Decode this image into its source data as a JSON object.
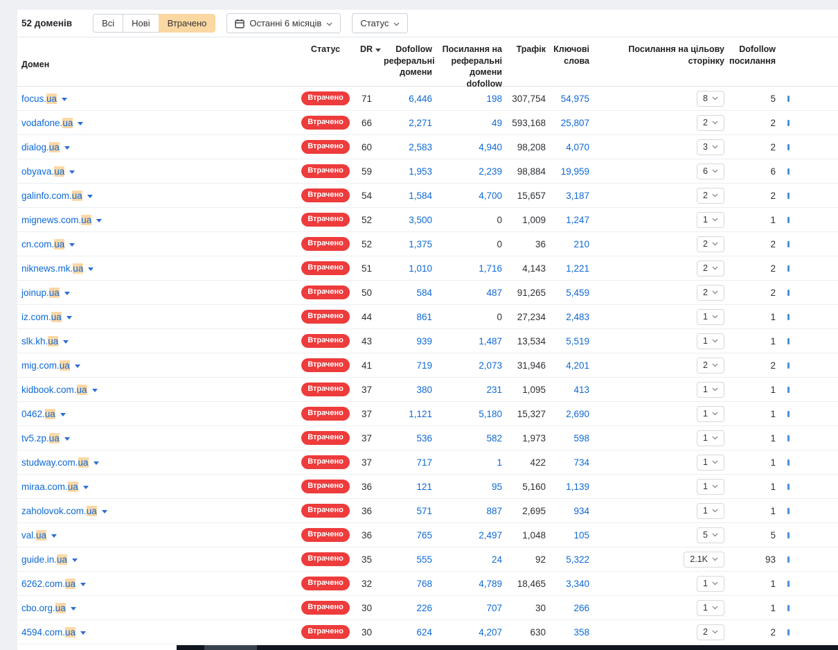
{
  "toolbar": {
    "count_label": "52 доменів",
    "filters": [
      "Всі",
      "Нові",
      "Втрачено"
    ],
    "active_filter": "Втрачено",
    "date_button": "Останні 6 місяців",
    "status_button": "Статус"
  },
  "table": {
    "columns": [
      "Домен",
      "Статус",
      "DR",
      "Dofollow реферальні домени",
      "Посилання на реферальні домени dofollow",
      "Трафік",
      "Ключові слова",
      "Посилання на цільову сторінку",
      "Dofollow посилання"
    ],
    "status_badge": "Втрачено",
    "rows": [
      {
        "domain_prefix": "focus.",
        "domain_highlight": "ua",
        "dr": "71",
        "dofollow_ref_domains": "6,446",
        "links_ref_domains": "198",
        "traffic": "307,754",
        "keywords": "54,975",
        "target_links": "8",
        "dofollow_links": "5"
      },
      {
        "domain_prefix": "vodafone.",
        "domain_highlight": "ua",
        "dr": "66",
        "dofollow_ref_domains": "2,271",
        "links_ref_domains": "49",
        "traffic": "593,168",
        "keywords": "25,807",
        "target_links": "2",
        "dofollow_links": "2"
      },
      {
        "domain_prefix": "dialog.",
        "domain_highlight": "ua",
        "dr": "60",
        "dofollow_ref_domains": "2,583",
        "links_ref_domains": "4,940",
        "traffic": "98,208",
        "keywords": "4,070",
        "target_links": "3",
        "dofollow_links": "2"
      },
      {
        "domain_prefix": "obyava.",
        "domain_highlight": "ua",
        "dr": "59",
        "dofollow_ref_domains": "1,953",
        "links_ref_domains": "2,239",
        "traffic": "98,884",
        "keywords": "19,959",
        "target_links": "6",
        "dofollow_links": "6"
      },
      {
        "domain_prefix": "galinfo.com.",
        "domain_highlight": "ua",
        "dr": "54",
        "dofollow_ref_domains": "1,584",
        "links_ref_domains": "4,700",
        "traffic": "15,657",
        "keywords": "3,187",
        "target_links": "2",
        "dofollow_links": "2"
      },
      {
        "domain_prefix": "mignews.com.",
        "domain_highlight": "ua",
        "dr": "52",
        "dofollow_ref_domains": "3,500",
        "links_ref_domains": "0",
        "traffic": "1,009",
        "keywords": "1,247",
        "target_links": "1",
        "dofollow_links": "1"
      },
      {
        "domain_prefix": "cn.com.",
        "domain_highlight": "ua",
        "dr": "52",
        "dofollow_ref_domains": "1,375",
        "links_ref_domains": "0",
        "traffic": "36",
        "keywords": "210",
        "target_links": "2",
        "dofollow_links": "2"
      },
      {
        "domain_prefix": "niknews.mk.",
        "domain_highlight": "ua",
        "dr": "51",
        "dofollow_ref_domains": "1,010",
        "links_ref_domains": "1,716",
        "traffic": "4,143",
        "keywords": "1,221",
        "target_links": "2",
        "dofollow_links": "2"
      },
      {
        "domain_prefix": "joinup.",
        "domain_highlight": "ua",
        "dr": "50",
        "dofollow_ref_domains": "584",
        "links_ref_domains": "487",
        "traffic": "91,265",
        "keywords": "5,459",
        "target_links": "2",
        "dofollow_links": "2"
      },
      {
        "domain_prefix": "iz.com.",
        "domain_highlight": "ua",
        "dr": "44",
        "dofollow_ref_domains": "861",
        "links_ref_domains": "0",
        "traffic": "27,234",
        "keywords": "2,483",
        "target_links": "1",
        "dofollow_links": "1"
      },
      {
        "domain_prefix": "slk.kh.",
        "domain_highlight": "ua",
        "dr": "43",
        "dofollow_ref_domains": "939",
        "links_ref_domains": "1,487",
        "traffic": "13,534",
        "keywords": "5,519",
        "target_links": "1",
        "dofollow_links": "1"
      },
      {
        "domain_prefix": "mig.com.",
        "domain_highlight": "ua",
        "dr": "41",
        "dofollow_ref_domains": "719",
        "links_ref_domains": "2,073",
        "traffic": "31,946",
        "keywords": "4,201",
        "target_links": "2",
        "dofollow_links": "2"
      },
      {
        "domain_prefix": "kidbook.com.",
        "domain_highlight": "ua",
        "dr": "37",
        "dofollow_ref_domains": "380",
        "links_ref_domains": "231",
        "traffic": "1,095",
        "keywords": "413",
        "target_links": "1",
        "dofollow_links": "1"
      },
      {
        "domain_prefix": "0462.",
        "domain_highlight": "ua",
        "dr": "37",
        "dofollow_ref_domains": "1,121",
        "links_ref_domains": "5,180",
        "traffic": "15,327",
        "keywords": "2,690",
        "target_links": "1",
        "dofollow_links": "1"
      },
      {
        "domain_prefix": "tv5.zp.",
        "domain_highlight": "ua",
        "dr": "37",
        "dofollow_ref_domains": "536",
        "links_ref_domains": "582",
        "traffic": "1,973",
        "keywords": "598",
        "target_links": "1",
        "dofollow_links": "1"
      },
      {
        "domain_prefix": "studway.com.",
        "domain_highlight": "ua",
        "dr": "37",
        "dofollow_ref_domains": "717",
        "links_ref_domains": "1",
        "traffic": "422",
        "keywords": "734",
        "target_links": "1",
        "dofollow_links": "1"
      },
      {
        "domain_prefix": "miraa.com.",
        "domain_highlight": "ua",
        "dr": "36",
        "dofollow_ref_domains": "121",
        "links_ref_domains": "95",
        "traffic": "5,160",
        "keywords": "1,139",
        "target_links": "1",
        "dofollow_links": "1"
      },
      {
        "domain_prefix": "zaholovok.com.",
        "domain_highlight": "ua",
        "dr": "36",
        "dofollow_ref_domains": "571",
        "links_ref_domains": "887",
        "traffic": "2,695",
        "keywords": "934",
        "target_links": "1",
        "dofollow_links": "1"
      },
      {
        "domain_prefix": "val.",
        "domain_highlight": "ua",
        "dr": "36",
        "dofollow_ref_domains": "765",
        "links_ref_domains": "2,497",
        "traffic": "1,048",
        "keywords": "105",
        "target_links": "5",
        "dofollow_links": "5"
      },
      {
        "domain_prefix": "guide.in.",
        "domain_highlight": "ua",
        "dr": "35",
        "dofollow_ref_domains": "555",
        "links_ref_domains": "24",
        "traffic": "92",
        "keywords": "5,322",
        "target_links": "2.1K",
        "dofollow_links": "93"
      },
      {
        "domain_prefix": "6262.com.",
        "domain_highlight": "ua",
        "dr": "32",
        "dofollow_ref_domains": "768",
        "links_ref_domains": "4,789",
        "traffic": "18,465",
        "keywords": "3,340",
        "target_links": "1",
        "dofollow_links": "1"
      },
      {
        "domain_prefix": "cbo.org.",
        "domain_highlight": "ua",
        "dr": "30",
        "dofollow_ref_domains": "226",
        "links_ref_domains": "707",
        "traffic": "30",
        "keywords": "266",
        "target_links": "1",
        "dofollow_links": "1"
      },
      {
        "domain_prefix": "4594.com.",
        "domain_highlight": "ua",
        "dr": "30",
        "dofollow_ref_domains": "624",
        "links_ref_domains": "4,207",
        "traffic": "630",
        "keywords": "358",
        "target_links": "2",
        "dofollow_links": "2"
      }
    ]
  },
  "colors": {
    "link_blue": "#0d69d5",
    "badge_red": "#ee3b3b",
    "highlight_peach": "#fcd8a6",
    "active_filter_bg": "#fbd7a2"
  }
}
